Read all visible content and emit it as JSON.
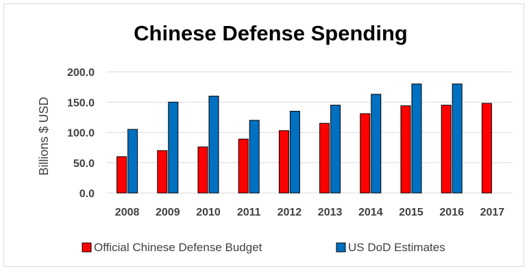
{
  "chart_data": {
    "type": "bar",
    "title": "Chinese Defense Spending",
    "ylabel": "Billions $ USD",
    "xlabel": "",
    "categories": [
      "2008",
      "2009",
      "2010",
      "2011",
      "2012",
      "2013",
      "2014",
      "2015",
      "2016",
      "2017"
    ],
    "ylim": [
      0,
      200
    ],
    "yticks": [
      "0.0",
      "50.0",
      "100.0",
      "150.0",
      "200.0"
    ],
    "grid": true,
    "legend_position": "bottom",
    "series": [
      {
        "name": "Official Chinese Defense Budget",
        "color": "#ff0000",
        "values": [
          60,
          70,
          76,
          89,
          103,
          115,
          131,
          144,
          145,
          148
        ]
      },
      {
        "name": "US DoD Estimates",
        "color": "#0070c0",
        "values": [
          105,
          150,
          160,
          120,
          135,
          145,
          163,
          180,
          180,
          null
        ]
      }
    ]
  }
}
